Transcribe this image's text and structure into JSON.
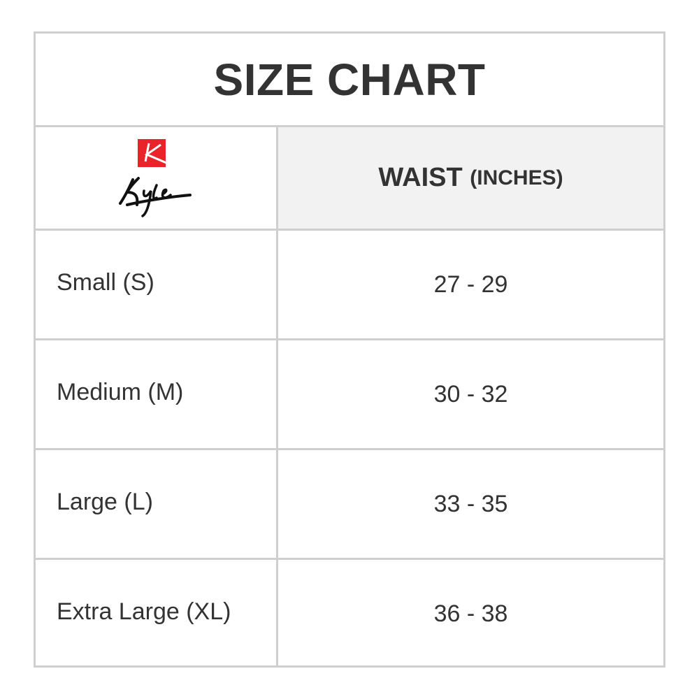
{
  "title": "SIZE CHART",
  "logo": {
    "text": "Kyle",
    "brand_color": "#e8232a"
  },
  "header": {
    "column_main": "WAIST",
    "column_unit": "(INCHES)"
  },
  "rows": [
    {
      "size": "Small (S)",
      "waist": "27 - 29"
    },
    {
      "size": "Medium (M)",
      "waist": "30 - 32"
    },
    {
      "size": "Large (L)",
      "waist": "33 - 35"
    },
    {
      "size": "Extra Large (XL)",
      "waist": "36 - 38"
    }
  ]
}
